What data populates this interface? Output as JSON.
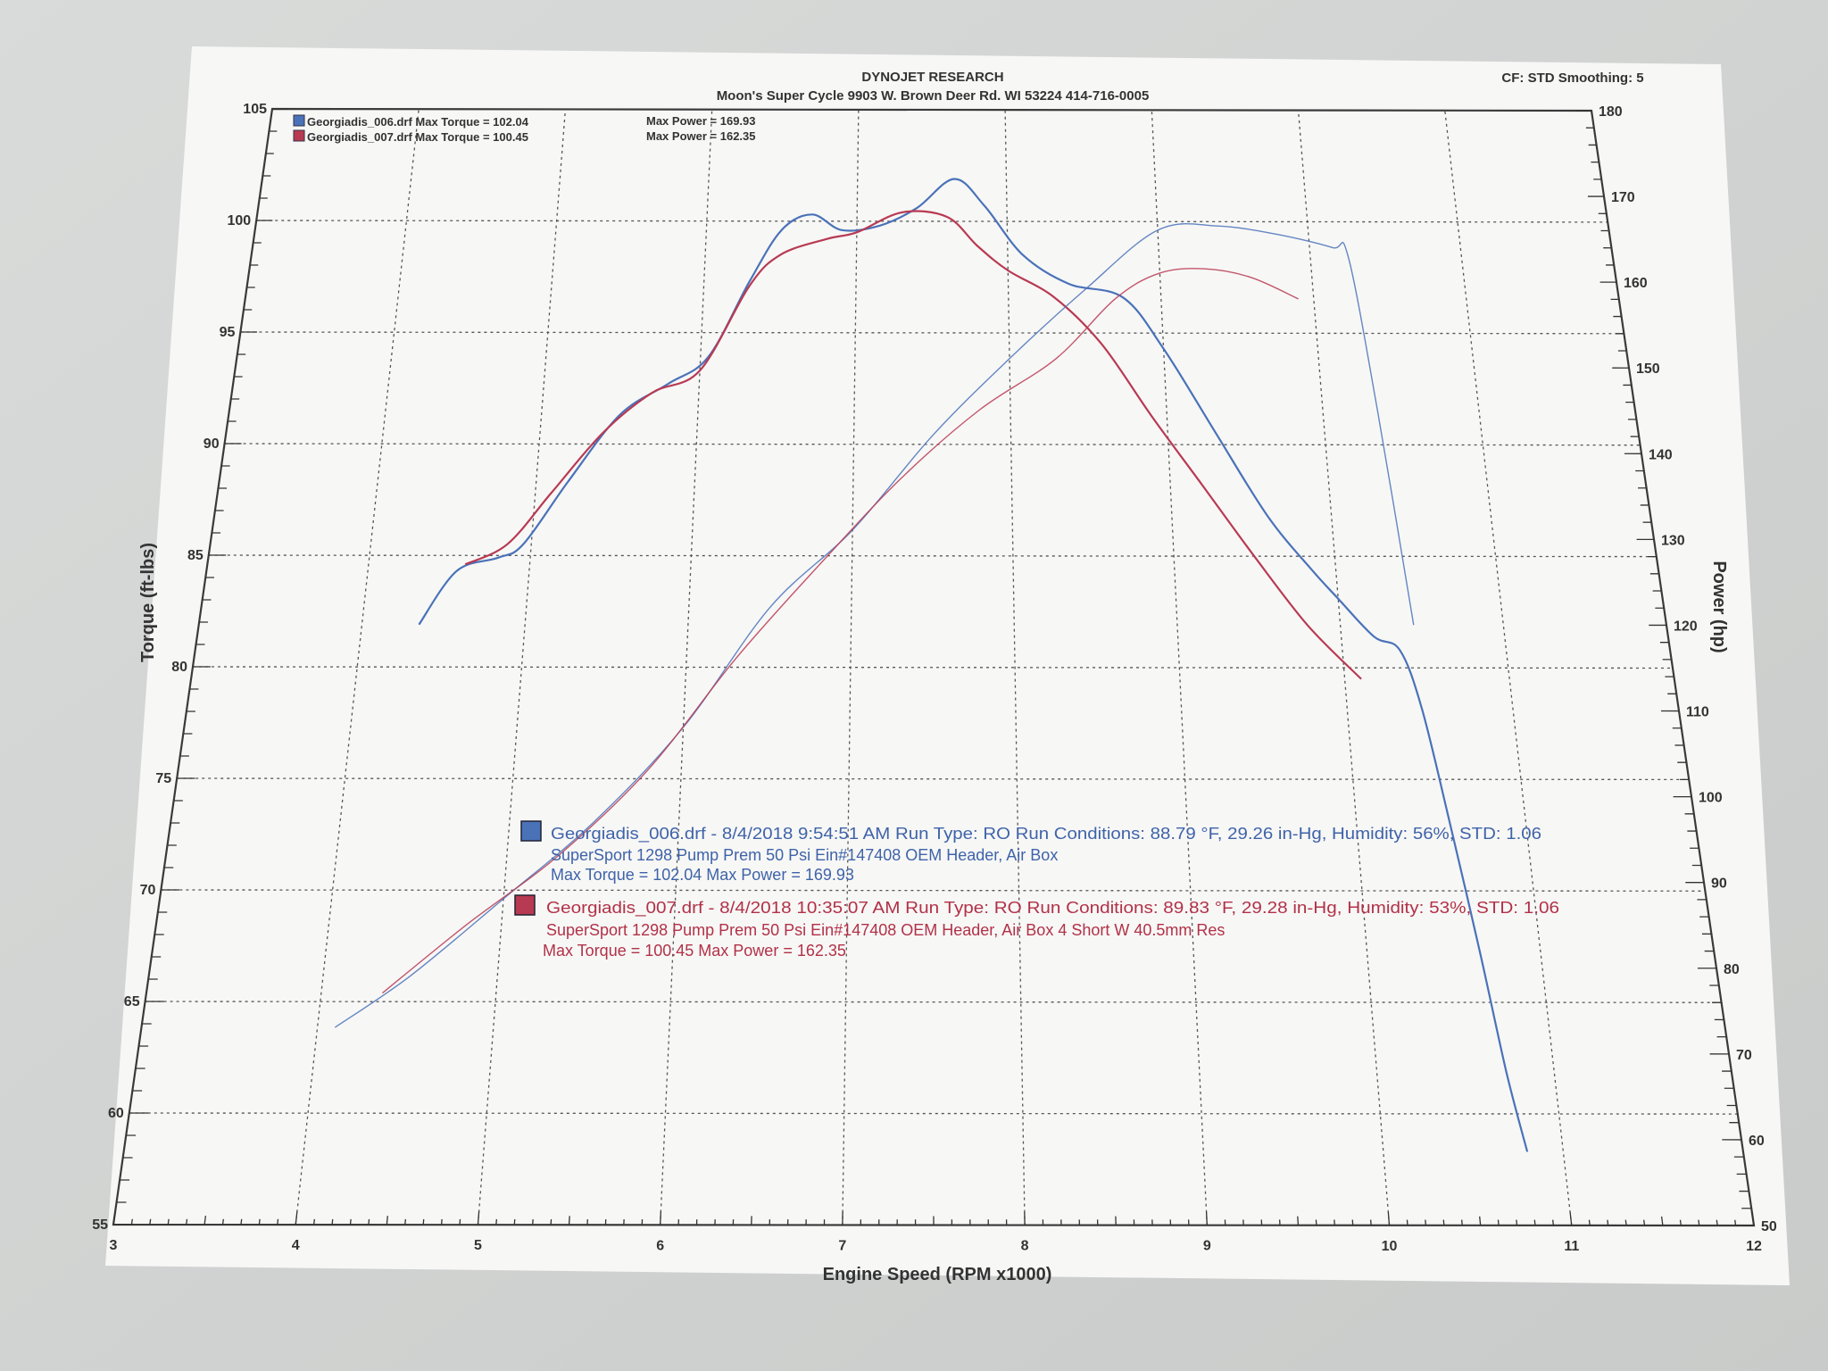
{
  "header": {
    "company": "DYNOJET RESEARCH",
    "shop": "Moon's Super Cycle 9903 W. Brown Deer Rd. WI 53224 414-716-0005",
    "settings": "CF: STD  Smoothing: 5"
  },
  "legend_top": [
    {
      "file": "Georgiadis_006.drf Max Torque = 102.04",
      "power": "Max Power = 169.93"
    },
    {
      "file": "Georgiadis_007.drf Max Torque = 100.45",
      "power": "Max Power = 162.35"
    }
  ],
  "runs": [
    {
      "line1": "Georgiadis_006.drf - 8/4/2018 9:54:51 AM  Run Type: RO  Run Conditions: 88.79 °F, 29.26 in-Hg,  Humidity: 56%, STD: 1.06",
      "line2": "SuperSport 1298 Pump Prem 50 Psi Ein#147408 OEM Header, Air Box",
      "line3": "Max Torque = 102.04  Max Power = 169.93"
    },
    {
      "line1": "Georgiadis_007.drf - 8/4/2018 10:35:07 AM  Run Type: RO  Run Conditions: 89.83 °F, 29.28 in-Hg,  Humidity:  53%, STD: 1.06",
      "line2": "SuperSport 1298 Pump Prem 50 Psi Ein#147408 OEM Header, Air Box 4 Short W 40.5mm Res",
      "line3": "Max Torque = 100.45  Max Power = 162.35"
    }
  ],
  "chart_data": {
    "type": "line",
    "xlabel": "Engine Speed (RPM x1000)",
    "ylabel_left": "Torque (ft-lbs)",
    "ylabel_right": "Power (hp)",
    "xlim": [
      3,
      12
    ],
    "ylim_left": [
      55,
      105
    ],
    "ylim_right": [
      50,
      180
    ],
    "x_ticks": [
      3,
      4,
      5,
      6,
      7,
      8,
      9,
      10,
      11,
      12
    ],
    "y_left_ticks": [
      55,
      60,
      65,
      70,
      75,
      80,
      85,
      90,
      95,
      100,
      105
    ],
    "y_right_ticks": [
      50,
      60,
      70,
      80,
      90,
      100,
      110,
      120,
      130,
      140,
      150,
      160,
      170,
      180
    ],
    "grid": true,
    "colors": {
      "run_006": "#4a72b8",
      "run_007": "#b83a52",
      "grid": "#555555"
    },
    "series": [
      {
        "name": "Georgiadis_006.drf",
        "measure": "torque",
        "axis": "left",
        "x": [
          4.35,
          4.55,
          4.8,
          4.95,
          5.2,
          5.5,
          5.8,
          6.05,
          6.3,
          6.5,
          6.7,
          6.9,
          7.15,
          7.4,
          7.65,
          7.85,
          8.1,
          8.4,
          8.75,
          9.0,
          9.3,
          9.6,
          9.85,
          10.0,
          10.2,
          10.35,
          10.45,
          10.55,
          10.65,
          10.73,
          10.8
        ],
        "y": [
          81.9,
          84.3,
          84.9,
          85.5,
          88.3,
          91.3,
          92.7,
          93.9,
          97.3,
          99.6,
          100.3,
          99.6,
          99.8,
          100.6,
          101.9,
          100.7,
          98.5,
          97.2,
          96.6,
          94.3,
          90.6,
          86.8,
          84.4,
          83.1,
          81.4,
          80.8,
          78.2,
          73.1,
          67.3,
          61.9,
          58.3
        ]
      },
      {
        "name": "Georgiadis_007.drf",
        "measure": "torque",
        "axis": "left",
        "x": [
          4.6,
          4.85,
          5.1,
          5.4,
          5.7,
          6.0,
          6.3,
          6.5,
          6.8,
          7.0,
          7.3,
          7.6,
          7.8,
          8.0,
          8.3,
          8.6,
          8.9,
          9.2,
          9.5,
          9.8,
          10.1
        ],
        "y": [
          84.6,
          85.5,
          87.8,
          90.5,
          92.3,
          93.3,
          97.1,
          98.5,
          99.2,
          99.5,
          100.4,
          100.2,
          98.9,
          97.8,
          96.6,
          94.5,
          91.3,
          88.2,
          85.0,
          81.9,
          79.5
        ]
      },
      {
        "name": "Georgiadis_006.drf",
        "measure": "power",
        "axis": "right",
        "x": [
          4.1,
          4.5,
          5.0,
          5.5,
          6.0,
          6.5,
          7.0,
          7.5,
          8.0,
          8.5,
          9.0,
          9.4,
          9.8,
          10.15,
          10.25,
          10.35,
          10.45
        ],
        "y": [
          73,
          79,
          88,
          97,
          108,
          122,
          131,
          142,
          151,
          159,
          166,
          166.5,
          165.5,
          164,
          163,
          145,
          120
        ]
      },
      {
        "name": "Georgiadis_007.drf",
        "measure": "power",
        "axis": "right",
        "x": [
          4.35,
          4.8,
          5.3,
          5.8,
          6.3,
          6.8,
          7.3,
          7.8,
          8.3,
          8.7,
          9.0,
          9.3,
          9.6,
          9.9
        ],
        "y": [
          77,
          85,
          93,
          103,
          116,
          127,
          137,
          145,
          151,
          158,
          161,
          161.5,
          160.5,
          158
        ]
      }
    ]
  }
}
